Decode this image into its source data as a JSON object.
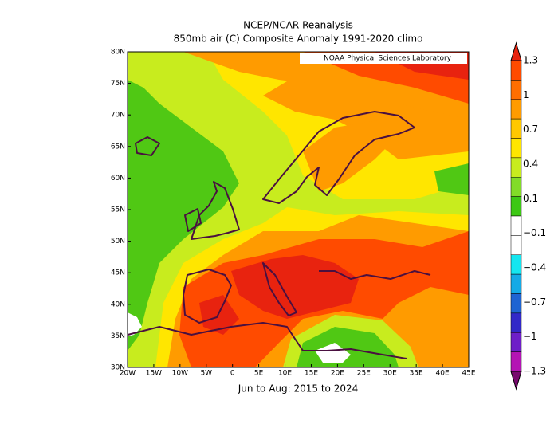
{
  "map": {
    "title": "NCEP/NCAR Reanalysis",
    "subtitle": "850mb air (C) Composite Anomaly 1991-2020 climo",
    "credit": "NOAA Physical Sciences Laboratory",
    "period": "Jun to Aug: 2015 to 2024",
    "lon_labels": [
      "20W",
      "15W",
      "10W",
      "5W",
      "0",
      "5E",
      "10E",
      "15E",
      "20E",
      "25E",
      "30E",
      "35E",
      "40E",
      "45E"
    ],
    "lat_labels": [
      "30N",
      "35N",
      "40N",
      "45N",
      "50N",
      "55N",
      "60N",
      "65N",
      "70N",
      "75N",
      "80N"
    ],
    "colorbar": {
      "labels": [
        "1.3",
        "1",
        "0.7",
        "0.4",
        "0.1",
        "−0.1",
        "−0.4",
        "−0.7",
        "−1",
        "−1.3"
      ],
      "colors": [
        "#e8230f",
        "#ff4b00",
        "#ff6e00",
        "#ff9b00",
        "#ffc800",
        "#ffe600",
        "#c8ec1e",
        "#82dc28",
        "#3cc814",
        "#ffffff",
        "#ffffff",
        "#14e6f0",
        "#14aae6",
        "#1e64d2",
        "#3228c8",
        "#6e1ec8",
        "#b414b4",
        "#780a6e"
      ]
    }
  }
}
